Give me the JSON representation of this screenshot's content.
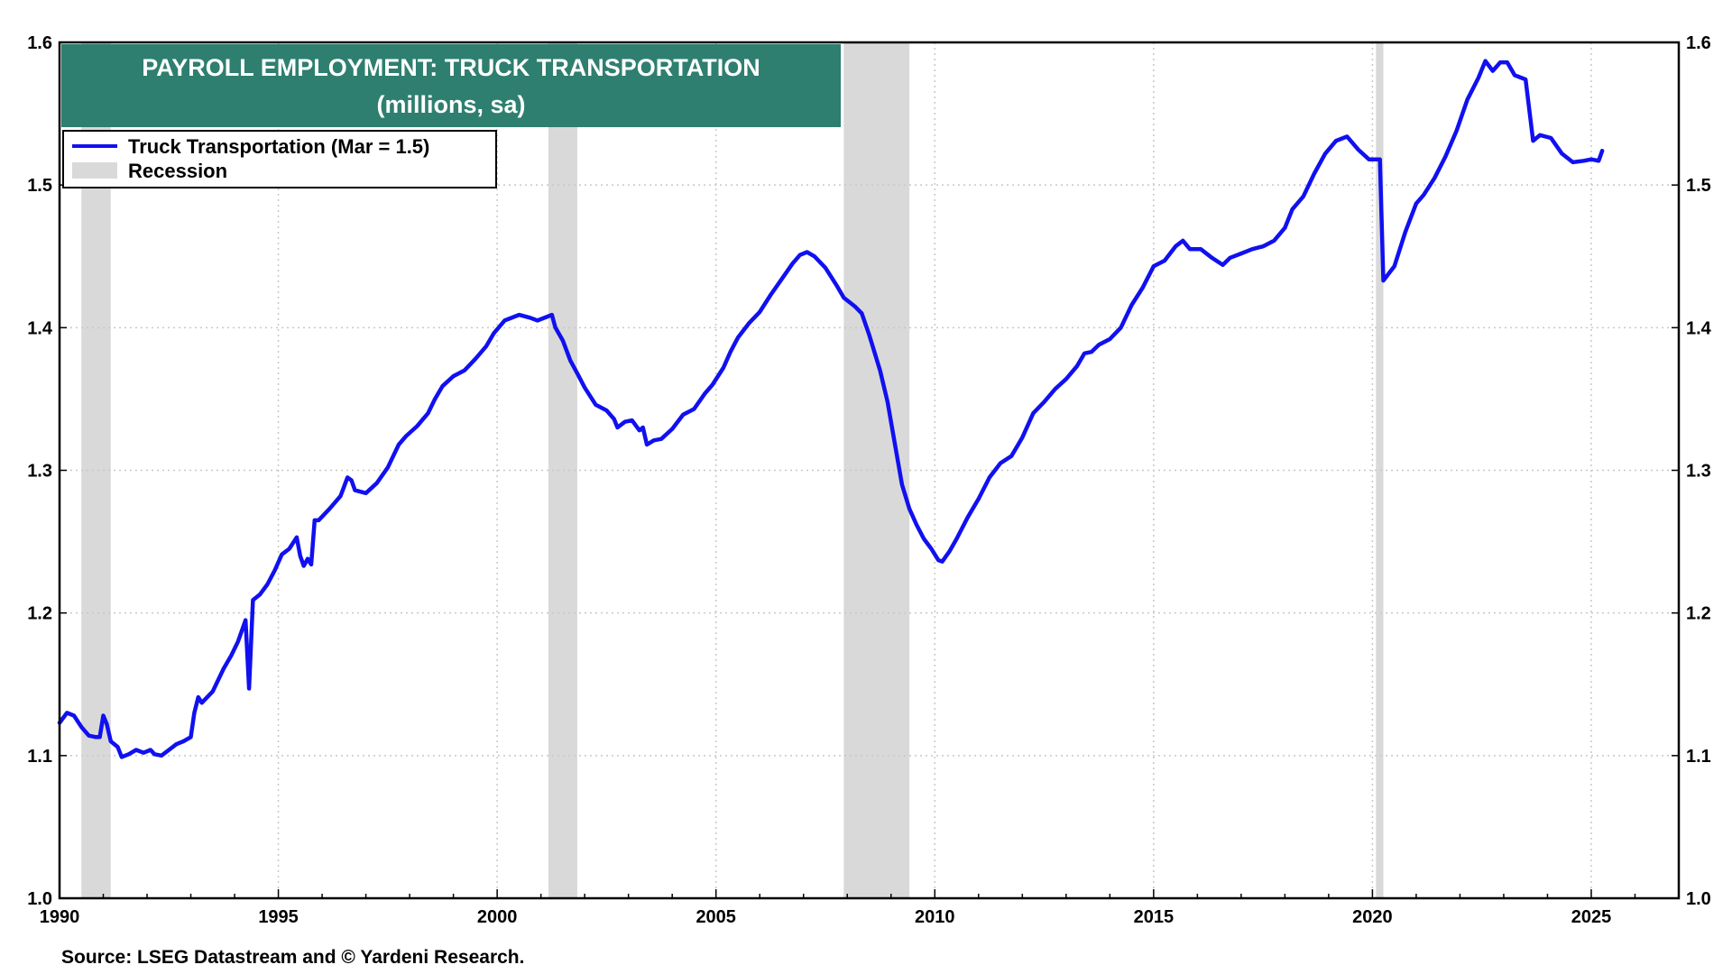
{
  "chart_data": {
    "type": "line",
    "title": "PAYROLL EMPLOYMENT: TRUCK TRANSPORTATION",
    "subtitle": "(millions, sa)",
    "source": "Source: LSEG Datastream and © Yardeni Research.",
    "xlim": [
      1990,
      2027
    ],
    "ylim": [
      1.0,
      1.6
    ],
    "x_ticks": [
      1990,
      1995,
      2000,
      2005,
      2010,
      2015,
      2020,
      2025
    ],
    "y_ticks": [
      1.0,
      1.1,
      1.2,
      1.3,
      1.4,
      1.5,
      1.6
    ],
    "y_tick_labels": [
      "1.0",
      "1.1",
      "1.2",
      "1.3",
      "1.4",
      "1.5",
      "1.6"
    ],
    "grid": true,
    "legend_position": "top-left",
    "legend": [
      {
        "label": "Truck Transportation (Mar = 1.5)",
        "kind": "line",
        "color": "#1010f0"
      },
      {
        "label": "Recession",
        "kind": "area",
        "color": "#d9d9d9"
      }
    ],
    "recessions": [
      [
        1990.5,
        1991.17
      ],
      [
        2001.17,
        2001.83
      ],
      [
        2007.92,
        2009.42
      ],
      [
        2020.08,
        2020.25
      ]
    ],
    "series": [
      {
        "name": "Truck Transportation (Mar = 1.5)",
        "color": "#1010f0",
        "points": [
          [
            1990.0,
            1.123
          ],
          [
            1990.17,
            1.13
          ],
          [
            1990.33,
            1.128
          ],
          [
            1990.5,
            1.12
          ],
          [
            1990.67,
            1.114
          ],
          [
            1990.83,
            1.113
          ],
          [
            1990.92,
            1.113
          ],
          [
            1991.0,
            1.128
          ],
          [
            1991.08,
            1.122
          ],
          [
            1991.17,
            1.11
          ],
          [
            1991.33,
            1.106
          ],
          [
            1991.42,
            1.099
          ],
          [
            1991.58,
            1.101
          ],
          [
            1991.75,
            1.104
          ],
          [
            1991.92,
            1.102
          ],
          [
            1992.08,
            1.104
          ],
          [
            1992.17,
            1.101
          ],
          [
            1992.33,
            1.1
          ],
          [
            1992.5,
            1.104
          ],
          [
            1992.67,
            1.108
          ],
          [
            1992.83,
            1.11
          ],
          [
            1993.0,
            1.113
          ],
          [
            1993.08,
            1.13
          ],
          [
            1993.17,
            1.141
          ],
          [
            1993.25,
            1.137
          ],
          [
            1993.5,
            1.145
          ],
          [
            1993.75,
            1.161
          ],
          [
            1993.92,
            1.17
          ],
          [
            1994.08,
            1.18
          ],
          [
            1994.25,
            1.195
          ],
          [
            1994.33,
            1.147
          ],
          [
            1994.42,
            1.209
          ],
          [
            1994.58,
            1.213
          ],
          [
            1994.75,
            1.22
          ],
          [
            1994.92,
            1.23
          ],
          [
            1995.08,
            1.241
          ],
          [
            1995.25,
            1.245
          ],
          [
            1995.42,
            1.253
          ],
          [
            1995.5,
            1.24
          ],
          [
            1995.58,
            1.233
          ],
          [
            1995.67,
            1.238
          ],
          [
            1995.75,
            1.234
          ],
          [
            1995.83,
            1.265
          ],
          [
            1995.92,
            1.265
          ],
          [
            1996.17,
            1.273
          ],
          [
            1996.42,
            1.282
          ],
          [
            1996.58,
            1.295
          ],
          [
            1996.67,
            1.293
          ],
          [
            1996.75,
            1.286
          ],
          [
            1997.0,
            1.284
          ],
          [
            1997.25,
            1.291
          ],
          [
            1997.5,
            1.302
          ],
          [
            1997.75,
            1.318
          ],
          [
            1997.92,
            1.324
          ],
          [
            1998.17,
            1.331
          ],
          [
            1998.42,
            1.34
          ],
          [
            1998.58,
            1.35
          ],
          [
            1998.75,
            1.359
          ],
          [
            1999.0,
            1.366
          ],
          [
            1999.25,
            1.37
          ],
          [
            1999.5,
            1.378
          ],
          [
            1999.75,
            1.387
          ],
          [
            1999.92,
            1.396
          ],
          [
            2000.17,
            1.405
          ],
          [
            2000.5,
            1.409
          ],
          [
            2000.75,
            1.407
          ],
          [
            2000.92,
            1.405
          ],
          [
            2001.25,
            1.409
          ],
          [
            2001.33,
            1.4
          ],
          [
            2001.5,
            1.391
          ],
          [
            2001.67,
            1.377
          ],
          [
            2001.83,
            1.368
          ],
          [
            2002.0,
            1.358
          ],
          [
            2002.25,
            1.346
          ],
          [
            2002.5,
            1.342
          ],
          [
            2002.67,
            1.336
          ],
          [
            2002.75,
            1.33
          ],
          [
            2002.92,
            1.334
          ],
          [
            2003.08,
            1.335
          ],
          [
            2003.25,
            1.328
          ],
          [
            2003.33,
            1.33
          ],
          [
            2003.42,
            1.318
          ],
          [
            2003.58,
            1.321
          ],
          [
            2003.75,
            1.322
          ],
          [
            2004.0,
            1.329
          ],
          [
            2004.25,
            1.339
          ],
          [
            2004.5,
            1.343
          ],
          [
            2004.75,
            1.354
          ],
          [
            2004.92,
            1.36
          ],
          [
            2005.17,
            1.372
          ],
          [
            2005.33,
            1.383
          ],
          [
            2005.5,
            1.393
          ],
          [
            2005.75,
            1.403
          ],
          [
            2006.0,
            1.411
          ],
          [
            2006.25,
            1.423
          ],
          [
            2006.5,
            1.434
          ],
          [
            2006.75,
            1.445
          ],
          [
            2006.92,
            1.451
          ],
          [
            2007.08,
            1.453
          ],
          [
            2007.25,
            1.45
          ],
          [
            2007.5,
            1.442
          ],
          [
            2007.75,
            1.43
          ],
          [
            2007.92,
            1.421
          ],
          [
            2008.17,
            1.415
          ],
          [
            2008.33,
            1.41
          ],
          [
            2008.5,
            1.395
          ],
          [
            2008.75,
            1.37
          ],
          [
            2008.92,
            1.348
          ],
          [
            2009.08,
            1.32
          ],
          [
            2009.25,
            1.29
          ],
          [
            2009.42,
            1.273
          ],
          [
            2009.58,
            1.262
          ],
          [
            2009.75,
            1.252
          ],
          [
            2009.92,
            1.245
          ],
          [
            2010.08,
            1.237
          ],
          [
            2010.17,
            1.236
          ],
          [
            2010.33,
            1.243
          ],
          [
            2010.5,
            1.252
          ],
          [
            2010.75,
            1.267
          ],
          [
            2011.0,
            1.28
          ],
          [
            2011.25,
            1.295
          ],
          [
            2011.5,
            1.305
          ],
          [
            2011.75,
            1.31
          ],
          [
            2012.0,
            1.323
          ],
          [
            2012.25,
            1.34
          ],
          [
            2012.5,
            1.348
          ],
          [
            2012.75,
            1.357
          ],
          [
            2013.0,
            1.364
          ],
          [
            2013.25,
            1.373
          ],
          [
            2013.42,
            1.382
          ],
          [
            2013.58,
            1.383
          ],
          [
            2013.75,
            1.388
          ],
          [
            2014.0,
            1.392
          ],
          [
            2014.25,
            1.4
          ],
          [
            2014.5,
            1.416
          ],
          [
            2014.75,
            1.428
          ],
          [
            2015.0,
            1.443
          ],
          [
            2015.25,
            1.447
          ],
          [
            2015.5,
            1.457
          ],
          [
            2015.67,
            1.461
          ],
          [
            2015.83,
            1.455
          ],
          [
            2016.08,
            1.455
          ],
          [
            2016.33,
            1.449
          ],
          [
            2016.58,
            1.444
          ],
          [
            2016.75,
            1.449
          ],
          [
            2017.0,
            1.452
          ],
          [
            2017.25,
            1.455
          ],
          [
            2017.5,
            1.457
          ],
          [
            2017.75,
            1.461
          ],
          [
            2018.0,
            1.47
          ],
          [
            2018.17,
            1.483
          ],
          [
            2018.42,
            1.492
          ],
          [
            2018.67,
            1.508
          ],
          [
            2018.92,
            1.522
          ],
          [
            2019.17,
            1.531
          ],
          [
            2019.42,
            1.534
          ],
          [
            2019.67,
            1.525
          ],
          [
            2019.92,
            1.518
          ],
          [
            2020.08,
            1.518
          ],
          [
            2020.17,
            1.518
          ],
          [
            2020.25,
            1.433
          ],
          [
            2020.5,
            1.443
          ],
          [
            2020.75,
            1.467
          ],
          [
            2021.0,
            1.487
          ],
          [
            2021.17,
            1.493
          ],
          [
            2021.42,
            1.505
          ],
          [
            2021.67,
            1.52
          ],
          [
            2021.92,
            1.538
          ],
          [
            2022.17,
            1.56
          ],
          [
            2022.42,
            1.575
          ],
          [
            2022.58,
            1.587
          ],
          [
            2022.75,
            1.58
          ],
          [
            2022.92,
            1.586
          ],
          [
            2023.08,
            1.586
          ],
          [
            2023.25,
            1.577
          ],
          [
            2023.5,
            1.574
          ],
          [
            2023.67,
            1.531
          ],
          [
            2023.83,
            1.535
          ],
          [
            2024.08,
            1.533
          ],
          [
            2024.33,
            1.522
          ],
          [
            2024.58,
            1.516
          ],
          [
            2024.83,
            1.517
          ],
          [
            2025.0,
            1.518
          ],
          [
            2025.17,
            1.517
          ],
          [
            2025.25,
            1.524
          ]
        ]
      }
    ]
  },
  "colors": {
    "title_bg": "#2e7f6f",
    "title_text": "#ffffff",
    "line": "#1010f0",
    "recession": "#d9d9d9",
    "grid": "#c8c8c8",
    "axis": "#000000"
  }
}
